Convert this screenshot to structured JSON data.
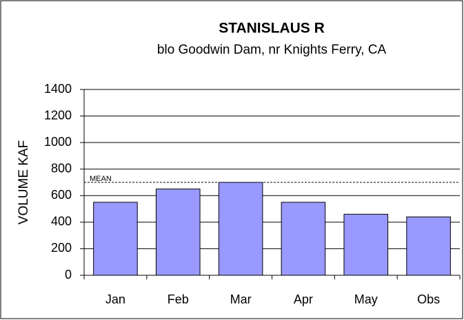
{
  "chart_data": {
    "type": "bar",
    "title": "STANISLAUS R",
    "subtitle": "blo Goodwin Dam, nr Knights Ferry, CA",
    "y_label": "VOLUME KAF",
    "categories": [
      "Jan",
      "Feb",
      "Mar",
      "Apr",
      "May",
      "Obs"
    ],
    "values": [
      550,
      650,
      700,
      550,
      460,
      440
    ],
    "color": "#9999ff",
    "ylim": [
      0,
      1400
    ],
    "yticks": [
      0,
      200,
      400,
      600,
      800,
      1000,
      1200,
      1400
    ],
    "grid": true,
    "mean": {
      "label": "MEAN",
      "value": 700
    }
  }
}
